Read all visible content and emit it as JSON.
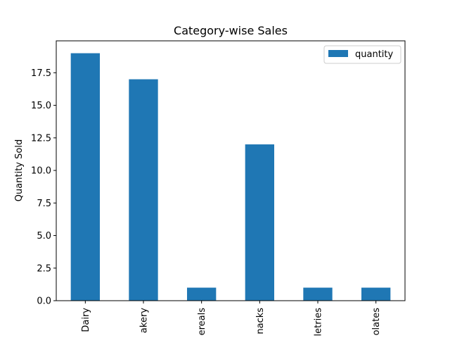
{
  "chart_data": {
    "type": "bar",
    "title": "Category-wise Sales",
    "xlabel": "",
    "ylabel": "Quantity Sold",
    "categories": [
      "Dairy",
      "Bakery",
      "Cereals",
      "Snacks",
      "Toiletries",
      "Chocolates"
    ],
    "category_labels_visible": [
      "Dairy",
      "akery",
      "ereals",
      "nacks",
      "letries",
      "olates"
    ],
    "series": [
      {
        "name": "quantity",
        "values": [
          19,
          17,
          1,
          12,
          1,
          1
        ],
        "color": "#1f77b4"
      }
    ],
    "ylim": [
      0,
      19.95
    ],
    "yticks": [
      0.0,
      2.5,
      5.0,
      7.5,
      10.0,
      12.5,
      15.0,
      17.5
    ],
    "ytick_labels": [
      "0.0",
      "2.5",
      "5.0",
      "7.5",
      "10.0",
      "12.5",
      "15.0",
      "17.5"
    ],
    "grid": false,
    "legend": "top-right"
  }
}
